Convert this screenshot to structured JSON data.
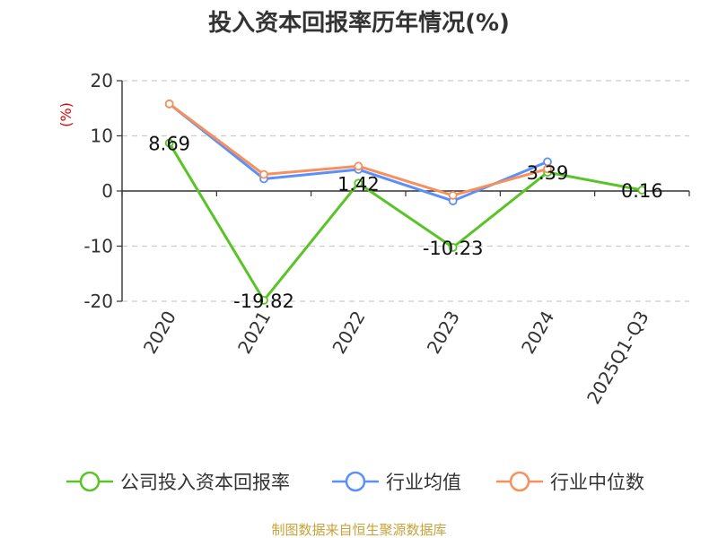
{
  "chart_data": {
    "type": "line",
    "title": "投入资本回报率历年情况(%)",
    "ylabel": "(%)",
    "xlabel": "",
    "categories": [
      "2020",
      "2021",
      "2022",
      "2023",
      "2024",
      "2025Q1-Q3"
    ],
    "yticks": [
      20,
      10,
      0,
      -10,
      -20
    ],
    "ylim": [
      -20,
      20
    ],
    "grid": true,
    "legend_position": "bottom",
    "series": [
      {
        "name": "公司投入资本回报率",
        "color": "#5ac427",
        "values": [
          8.69,
          -19.82,
          1.42,
          -10.23,
          3.39,
          0.16
        ],
        "labels": [
          "8.69",
          "-19.82",
          "1.42",
          "-10.23",
          "3.39",
          "0.16"
        ]
      },
      {
        "name": "行业均值",
        "color": "#5b8ff9",
        "values": [
          15.8,
          2.2,
          3.9,
          -1.8,
          5.3,
          null
        ]
      },
      {
        "name": "行业中位数",
        "color": "#f7905d",
        "values": [
          15.8,
          3.0,
          4.5,
          -0.8,
          4.0,
          null
        ]
      }
    ]
  },
  "source": "制图数据来自恒生聚源数据库"
}
